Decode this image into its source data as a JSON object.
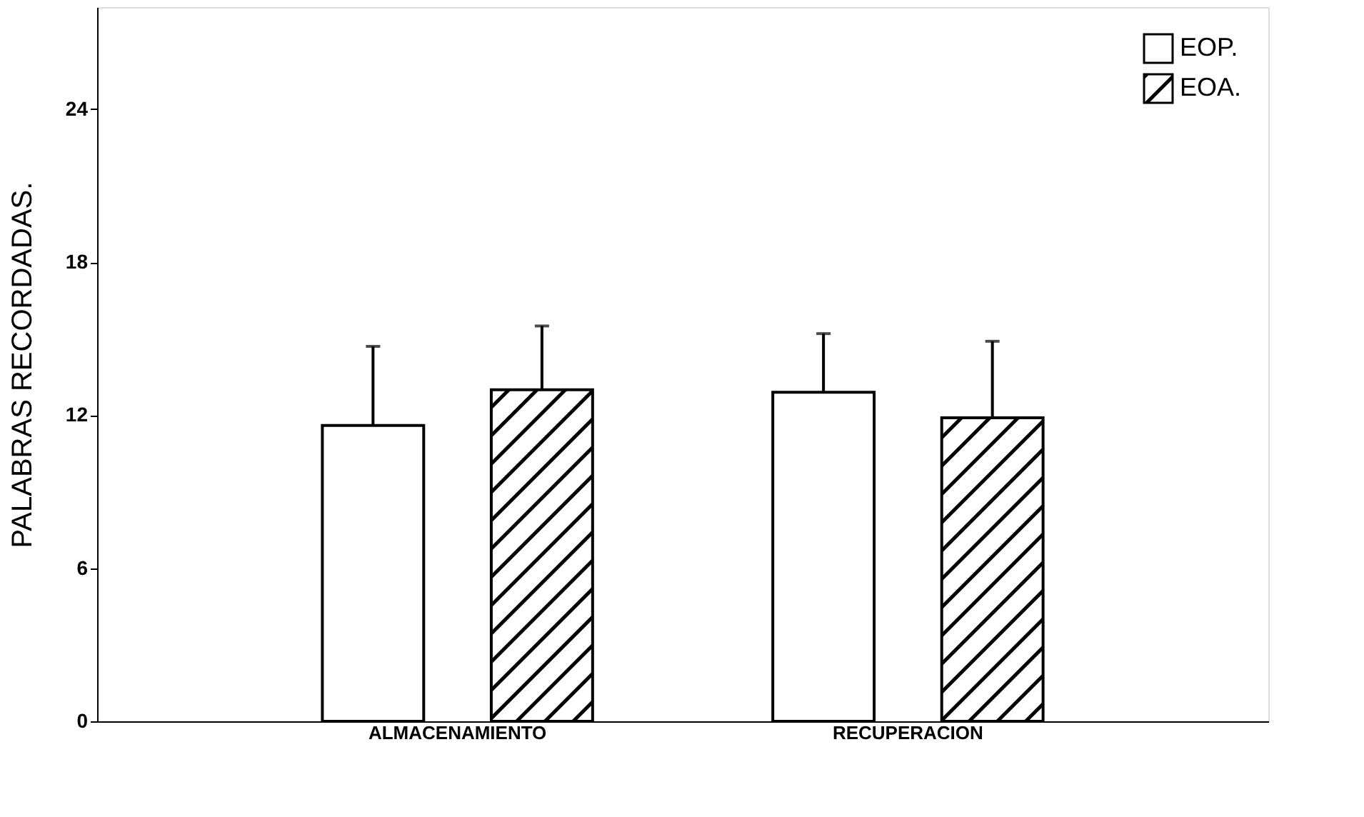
{
  "chart_data": {
    "type": "bar",
    "ylabel": "PALABRAS RECORDADAS.",
    "categories": [
      "ALMACENAMIENTO",
      "RECUPERACION"
    ],
    "series": [
      {
        "name": "EOP.",
        "color": "#ffffff",
        "values": [
          11.6,
          12.9
        ],
        "errors": [
          [
            11.6,
            14.7
          ],
          [
            12.9,
            15.2
          ]
        ]
      },
      {
        "name": "EOA.",
        "color": "#000000",
        "values": [
          13.0,
          11.9
        ],
        "errors": [
          [
            13.0,
            15.5
          ],
          [
            11.9,
            14.9
          ]
        ]
      }
    ],
    "ylim": [
      0,
      28
    ],
    "yticks": [
      0,
      6,
      12,
      18,
      24
    ],
    "grid": false,
    "legend": "top right"
  }
}
